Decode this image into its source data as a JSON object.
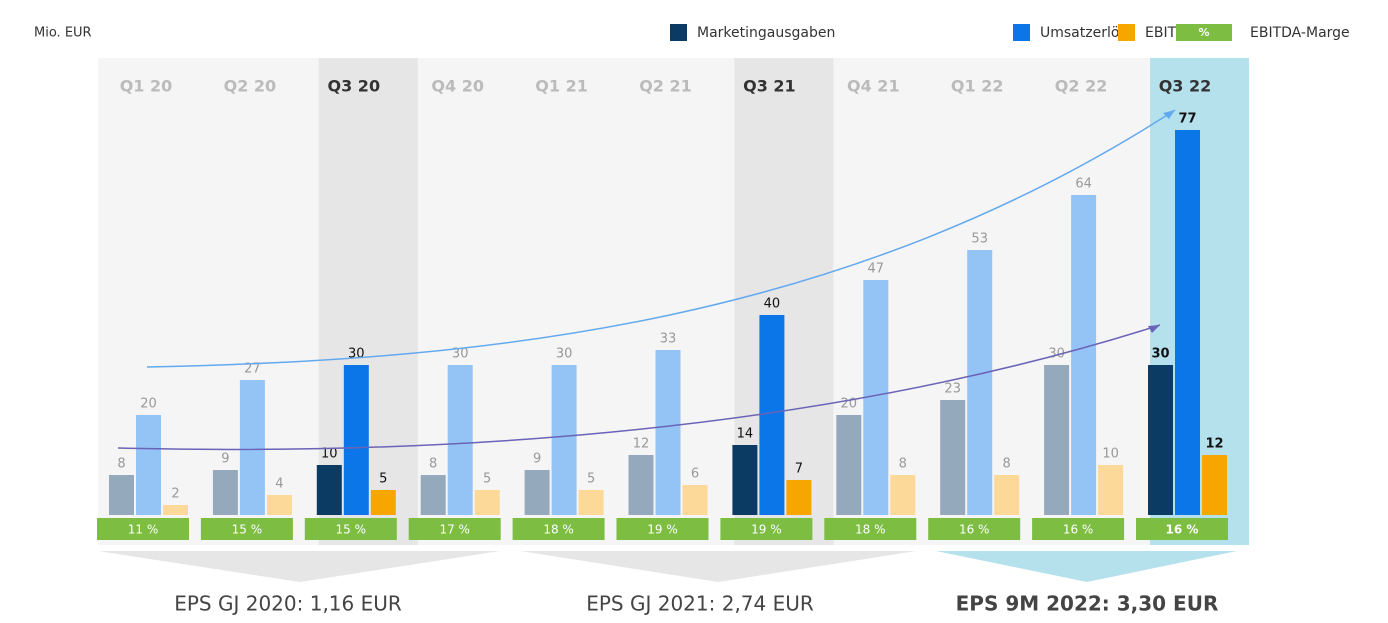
{
  "chart_data": {
    "type": "bar",
    "unit_label": "Mio. EUR",
    "categories": [
      "Q1 20",
      "Q2 20",
      "Q3 20",
      "Q4 20",
      "Q1 21",
      "Q2 21",
      "Q3 21",
      "Q4 21",
      "Q1 22",
      "Q2 22",
      "Q3 22"
    ],
    "series": [
      {
        "name": "Marketingausgaben",
        "color": "#0b3a63",
        "faded_color": "#95a9bd",
        "values": [
          8,
          9,
          10,
          8,
          9,
          12,
          14,
          20,
          23,
          30,
          30
        ]
      },
      {
        "name": "Umsatzerlöse",
        "color": "#0a76e8",
        "faded_color": "#94c4f5",
        "values": [
          20,
          27,
          30,
          30,
          30,
          33,
          40,
          47,
          53,
          64,
          77
        ]
      },
      {
        "name": "EBITDA",
        "color": "#f7a600",
        "faded_color": "#fcd899",
        "values": [
          2,
          4,
          5,
          5,
          5,
          6,
          7,
          8,
          8,
          10,
          12
        ]
      }
    ],
    "margin": {
      "name": "EBITDA-Marge",
      "legend_symbol": "%",
      "color": "#7cbd42",
      "values": [
        11,
        15,
        15,
        17,
        18,
        19,
        19,
        18,
        16,
        16,
        16
      ],
      "value_labels": [
        "11 %",
        "15 %",
        "15 %",
        "17 %",
        "18 %",
        "19 %",
        "19 %",
        "18 %",
        "16 %",
        "16 %",
        "16 %"
      ]
    },
    "highlighted": [
      2,
      6,
      10
    ],
    "highlight_fills": [
      "#e6e6e6",
      "#e6e6e6",
      "#b5e1ed"
    ],
    "ylim": [
      0,
      80
    ],
    "annotations": [
      "EPS GJ 2020: 1,16 EUR",
      "EPS GJ 2021: 2,74 EUR",
      "EPS 9M 2022: 3,30 EUR"
    ]
  }
}
